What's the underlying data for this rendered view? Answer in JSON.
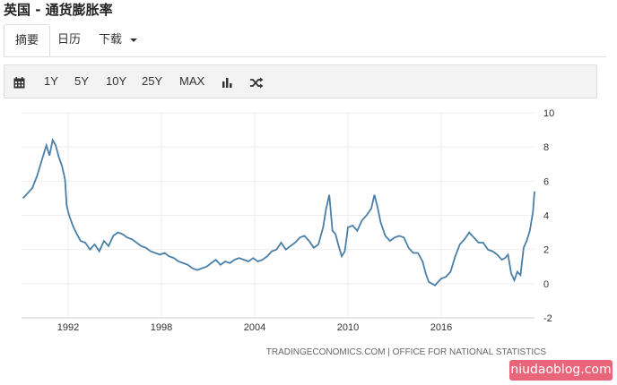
{
  "header": {
    "title": "英国 - 通货膨胀率"
  },
  "tabs": [
    {
      "label": "摘要",
      "active": true
    },
    {
      "label": "日历",
      "active": false
    },
    {
      "label": "下载",
      "active": false,
      "dropdown": true
    }
  ],
  "toolbar": {
    "calendar_icon": "calendar-icon",
    "ranges": [
      "1Y",
      "5Y",
      "10Y",
      "25Y",
      "MAX"
    ],
    "bar_chart_icon": "bar-chart-icon",
    "shuffle_icon": "shuffle-icon"
  },
  "source": "TRADINGECONOMICS.COM | OFFICE FOR NATIONAL STATISTICS",
  "watermark": "niudaoblog.com",
  "chart_data": {
    "type": "line",
    "title": "",
    "xlabel": "",
    "ylabel": "",
    "ylim": [
      -2,
      10
    ],
    "yticks": [
      -2,
      0,
      2,
      4,
      6,
      8,
      10
    ],
    "xlim": [
      1989.0,
      2022.0
    ],
    "xticks": [
      {
        "value": 1992,
        "label": "1992"
      },
      {
        "value": 1998,
        "label": "1998"
      },
      {
        "value": 2004,
        "label": "2004"
      },
      {
        "value": 2010,
        "label": "2010"
      },
      {
        "value": 2016,
        "label": "2016"
      }
    ],
    "grid": true,
    "line_color": "#4a7fa8",
    "series": [
      {
        "x": [
          1989.1,
          1989.4,
          1989.7,
          1990.0,
          1990.3,
          1990.6,
          1990.8,
          1991.0,
          1991.2,
          1991.4,
          1991.6,
          1991.8,
          1991.9,
          1992.0,
          1992.1,
          1992.3,
          1992.5,
          1992.8,
          1993.1,
          1993.4,
          1993.7,
          1994.0,
          1994.3,
          1994.6,
          1994.9,
          1995.2,
          1995.5,
          1995.8,
          1996.1,
          1996.4,
          1996.7,
          1997.0,
          1997.3,
          1997.6,
          1997.9,
          1998.2,
          1998.5,
          1998.8,
          1999.1,
          1999.4,
          1999.7,
          2000.0,
          2000.3,
          2000.6,
          2000.9,
          2001.2,
          2001.5,
          2001.8,
          2002.1,
          2002.4,
          2002.7,
          2003.0,
          2003.3,
          2003.6,
          2003.9,
          2004.2,
          2004.5,
          2004.8,
          2005.1,
          2005.4,
          2005.7,
          2006.0,
          2006.3,
          2006.6,
          2006.9,
          2007.2,
          2007.5,
          2007.8,
          2008.1,
          2008.4,
          2008.6,
          2008.8,
          2009.0,
          2009.2,
          2009.4,
          2009.6,
          2009.8,
          2010.0,
          2010.3,
          2010.6,
          2010.9,
          2011.2,
          2011.5,
          2011.7,
          2011.9,
          2012.1,
          2012.4,
          2012.7,
          2013.0,
          2013.3,
          2013.6,
          2013.9,
          2014.2,
          2014.5,
          2014.8,
          2015.0,
          2015.2,
          2015.4,
          2015.6,
          2015.8,
          2016.0,
          2016.3,
          2016.6,
          2016.9,
          2017.2,
          2017.5,
          2017.8,
          2018.1,
          2018.4,
          2018.7,
          2019.0,
          2019.3,
          2019.6,
          2019.9,
          2020.1,
          2020.3,
          2020.5,
          2020.7,
          2020.9,
          2021.1,
          2021.3,
          2021.5,
          2021.7,
          2021.9,
          2022.0
        ],
        "y": [
          5.0,
          5.3,
          5.6,
          6.3,
          7.2,
          8.1,
          7.5,
          8.4,
          8.1,
          7.4,
          6.9,
          6.1,
          4.6,
          4.2,
          3.9,
          3.4,
          3.0,
          2.5,
          2.4,
          2.0,
          2.3,
          1.9,
          2.5,
          2.2,
          2.8,
          3.0,
          2.9,
          2.7,
          2.6,
          2.4,
          2.2,
          2.1,
          1.9,
          1.8,
          1.7,
          1.8,
          1.6,
          1.5,
          1.3,
          1.2,
          1.1,
          0.9,
          0.8,
          0.9,
          1.0,
          1.2,
          1.4,
          1.1,
          1.3,
          1.2,
          1.4,
          1.5,
          1.4,
          1.3,
          1.5,
          1.3,
          1.4,
          1.6,
          1.9,
          2.0,
          2.4,
          2.0,
          2.2,
          2.4,
          2.7,
          2.8,
          2.5,
          2.1,
          2.3,
          3.3,
          4.4,
          5.2,
          3.1,
          2.9,
          2.2,
          1.6,
          1.9,
          3.3,
          3.4,
          3.1,
          3.7,
          4.0,
          4.4,
          5.2,
          4.5,
          3.6,
          2.8,
          2.5,
          2.7,
          2.8,
          2.7,
          2.1,
          1.8,
          1.8,
          1.3,
          0.6,
          0.1,
          0.0,
          -0.1,
          0.1,
          0.3,
          0.4,
          0.7,
          1.6,
          2.3,
          2.6,
          3.0,
          2.7,
          2.4,
          2.4,
          2.0,
          1.9,
          1.7,
          1.4,
          1.5,
          1.7,
          0.6,
          0.2,
          0.7,
          0.5,
          2.1,
          2.5,
          3.1,
          4.2,
          5.4
        ]
      }
    ]
  }
}
